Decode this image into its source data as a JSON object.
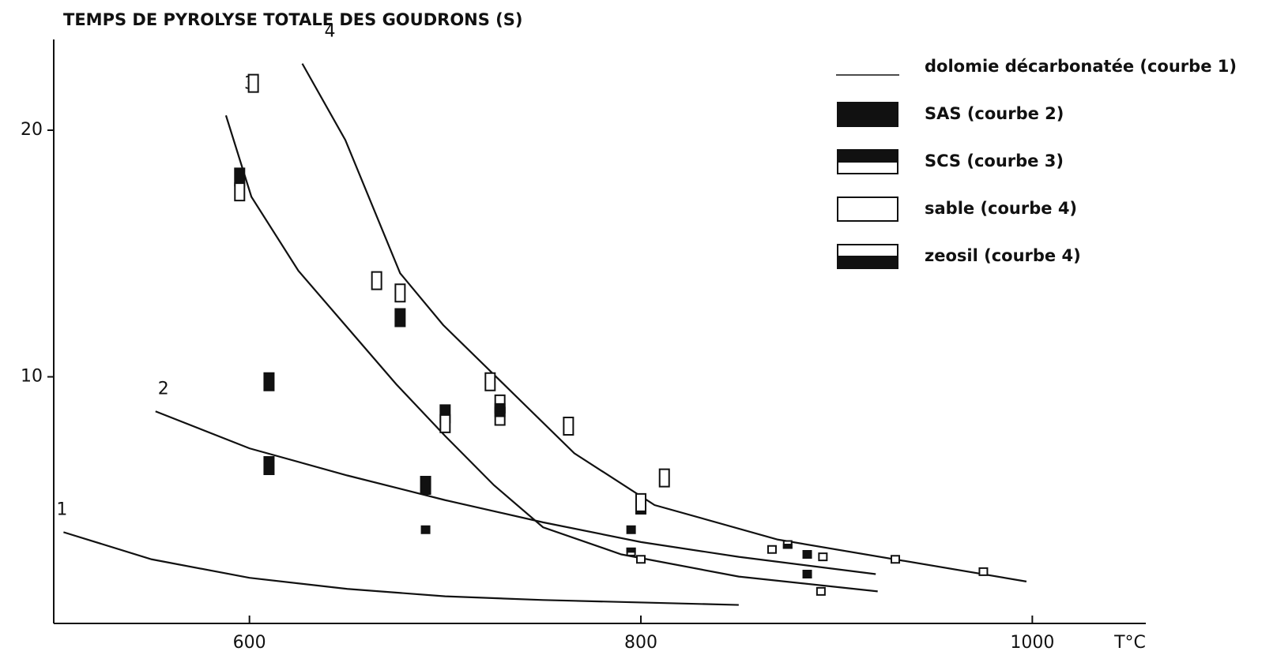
{
  "chart_data": {
    "type": "line",
    "title": "TEMPS DE PYROLYSE TOTALE DES GOUDRONS (S)",
    "x_label": "T°C",
    "xlim": [
      500,
      1058
    ],
    "xticks": [
      600,
      800,
      1000
    ],
    "ylim": [
      0,
      24
    ],
    "yticks": [
      10,
      20
    ],
    "color": "#111111",
    "curves": [
      {
        "label": "1",
        "x": [
          505,
          550,
          600,
          650,
          700,
          750,
          850
        ],
        "values": [
          3.7,
          2.6,
          1.85,
          1.4,
          1.1,
          0.95,
          0.75
        ]
      },
      {
        "label": "2",
        "x": [
          552,
          600,
          650,
          700,
          750,
          800,
          850,
          920
        ],
        "values": [
          8.6,
          7.1,
          6.0,
          5.0,
          4.1,
          3.3,
          2.7,
          2.0
        ]
      },
      {
        "label": "3",
        "x": [
          588,
          601,
          625,
          650,
          675,
          700,
          725,
          750,
          790,
          850,
          921
        ],
        "values": [
          20.6,
          17.3,
          14.3,
          12.0,
          9.7,
          7.6,
          5.6,
          3.9,
          2.8,
          1.9,
          1.3
        ]
      },
      {
        "label": "4",
        "x": [
          627,
          649,
          677,
          699,
          766,
          807,
          870,
          997
        ],
        "values": [
          22.7,
          19.6,
          14.2,
          12.1,
          6.9,
          4.8,
          3.4,
          1.7
        ]
      }
    ],
    "series": [
      {
        "name": "dolomie décarbonatée (courbe 1)",
        "marker": "line"
      },
      {
        "name": "SAS (courbe 2)",
        "marker": "filled",
        "x": [
          595,
          610,
          610,
          677,
          700,
          690,
          690,
          795,
          800,
          885,
          885
        ],
        "values": [
          18.1,
          9.8,
          6.4,
          12.4,
          8.5,
          5.6,
          3.8,
          3.8,
          4.8,
          2.8,
          2.0
        ]
      },
      {
        "name": "SCS (courbe 3)",
        "marker": "top",
        "x": [
          728,
          795
        ],
        "values": [
          8.4,
          2.9
        ]
      },
      {
        "name": "sable (courbe 4)",
        "marker": "open",
        "x": [
          602,
          595,
          665,
          677,
          723,
          700,
          763,
          812,
          800,
          867,
          800,
          893,
          930,
          975,
          892
        ],
        "values": [
          21.9,
          17.5,
          13.9,
          13.4,
          9.8,
          8.1,
          8.0,
          5.9,
          4.9,
          3.0,
          2.6,
          2.7,
          2.6,
          2.1,
          1.3
        ]
      },
      {
        "name": "zeosil (courbe 4)",
        "marker": "bottom",
        "x": [
          875,
          728
        ],
        "values": [
          3.2,
          8.9
        ]
      }
    ]
  }
}
